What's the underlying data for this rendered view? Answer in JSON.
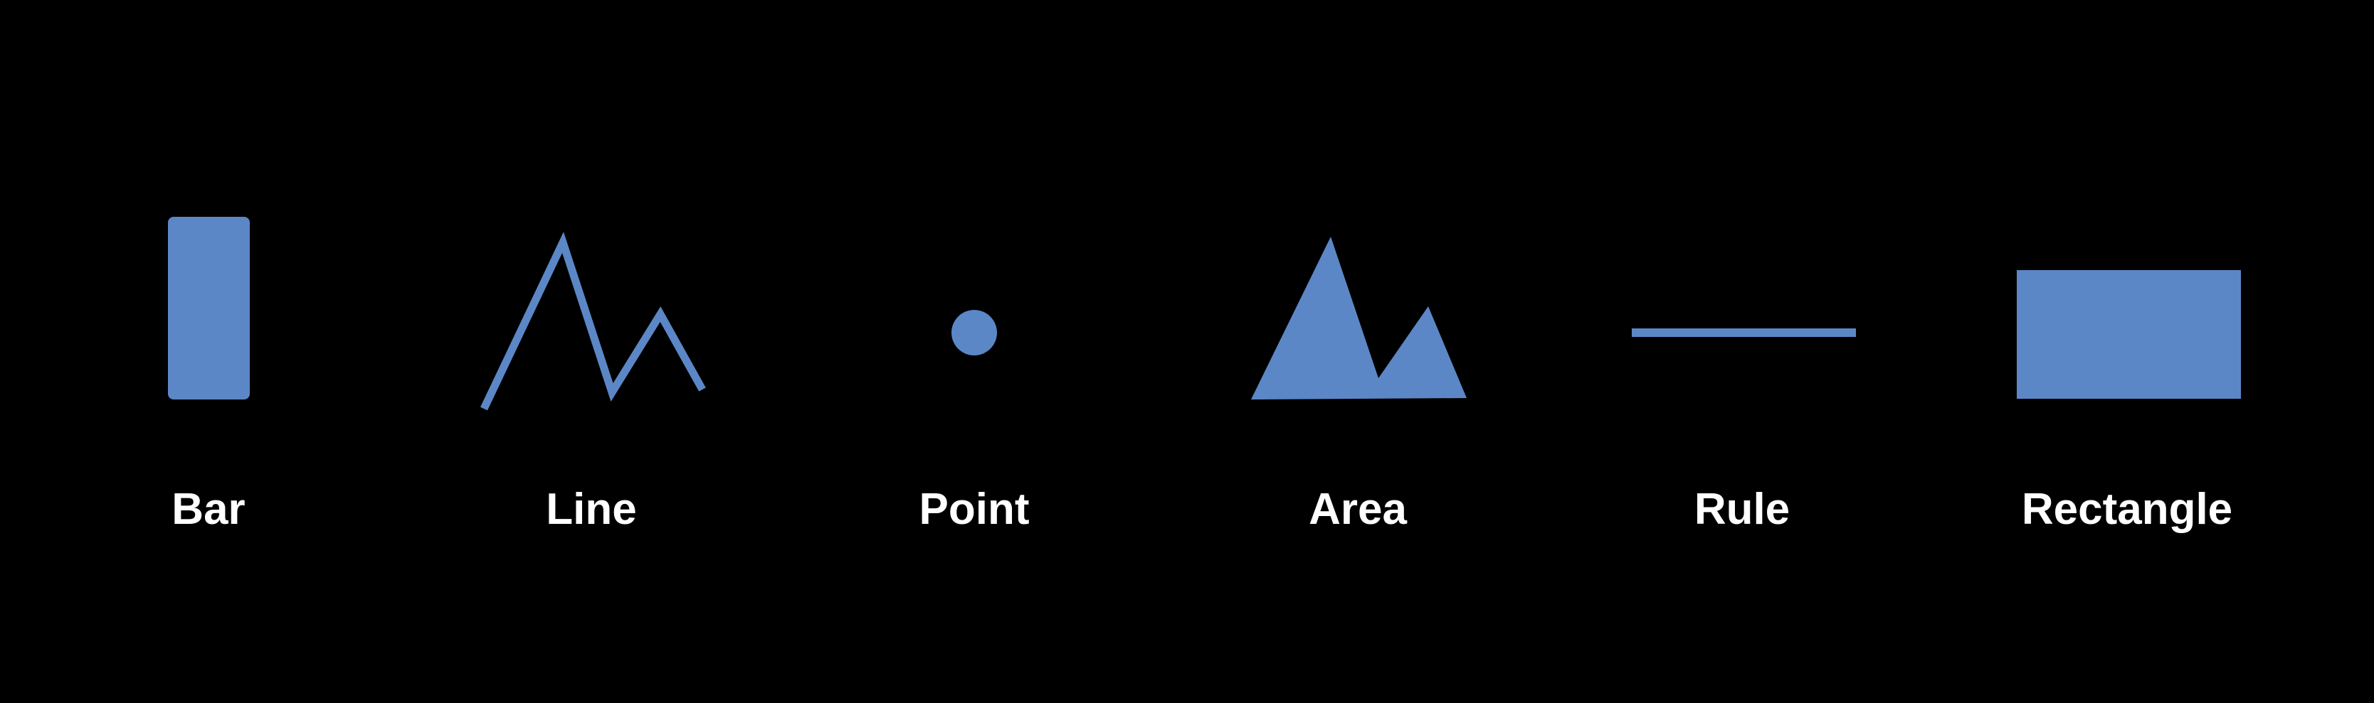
{
  "theme": {
    "background": "#000000",
    "mark_color": "#5b87c7",
    "label_color": "#ffffff"
  },
  "marks": [
    {
      "id": "bar",
      "label": "Bar",
      "icon": "bar-icon"
    },
    {
      "id": "line",
      "label": "Line",
      "icon": "line-icon"
    },
    {
      "id": "point",
      "label": "Point",
      "icon": "point-icon"
    },
    {
      "id": "area",
      "label": "Area",
      "icon": "area-icon"
    },
    {
      "id": "rule",
      "label": "Rule",
      "icon": "rule-icon"
    },
    {
      "id": "rectangle",
      "label": "Rectangle",
      "icon": "rectangle-icon"
    }
  ]
}
